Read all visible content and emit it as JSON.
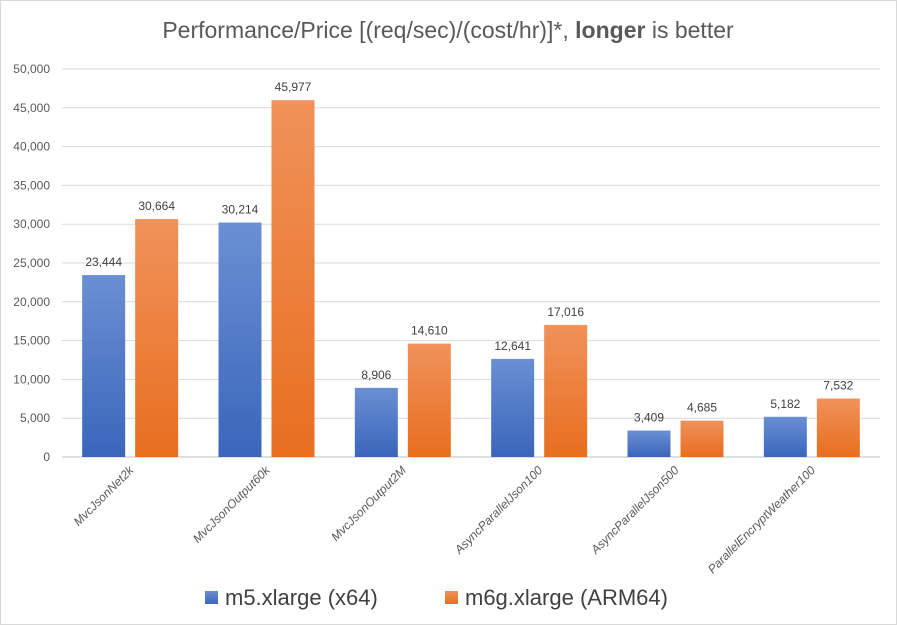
{
  "chart_data": {
    "type": "bar",
    "title": "Performance/Price [(req/sec)/(cost/hr)]*, ",
    "title_bold": "longer",
    "title_end": " is better",
    "categories": [
      "MvcJsonNet2k",
      "MvcJsonOutput60k",
      "MvcJsonOutput2M",
      "AsyncParallelJson100",
      "AsyncParallelJson500",
      "ParallelEncryptWeather100"
    ],
    "series": [
      {
        "name": "m5.xlarge (x64)",
        "color": "#4472C4",
        "values": [
          23444,
          30214,
          8906,
          12641,
          3409,
          5182
        ],
        "labels": [
          "23,444",
          "30,214",
          "8,906",
          "12,641",
          "3,409",
          "5,182"
        ]
      },
      {
        "name": "m6g.xlarge (ARM64)",
        "color": "#ED7D31",
        "values": [
          30664,
          45977,
          14610,
          17016,
          4685,
          7532
        ],
        "labels": [
          "30,664",
          "45,977",
          "14,610",
          "17,016",
          "4,685",
          "7,532"
        ]
      }
    ],
    "ylim": [
      0,
      50000
    ],
    "yticks": [
      "0",
      "5,000",
      "10,000",
      "15,000",
      "20,000",
      "25,000",
      "30,000",
      "35,000",
      "40,000",
      "45,000",
      "50,000"
    ],
    "grid": true,
    "legend": "bottom"
  }
}
